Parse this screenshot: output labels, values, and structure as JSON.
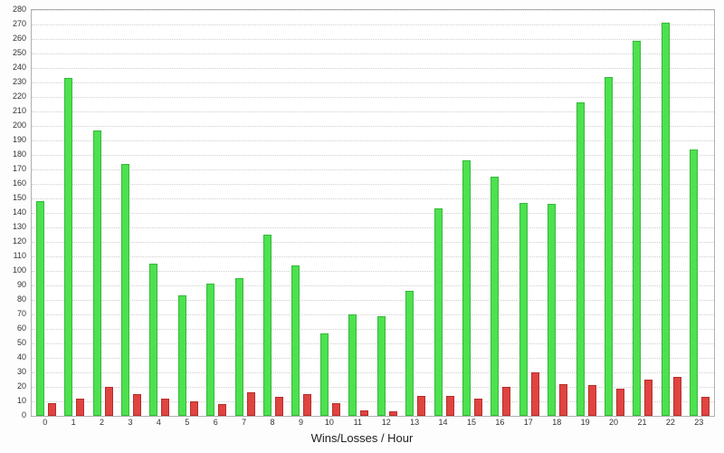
{
  "chart_data": {
    "type": "bar",
    "title": "Wins/Losses / Hour",
    "xlabel": "Wins/Losses / Hour",
    "ylabel": "",
    "ylim": [
      0,
      280
    ],
    "y_tick_step": 10,
    "grid": "horizontal-dotted",
    "legend": "none",
    "categories": [
      "0",
      "1",
      "2",
      "3",
      "4",
      "5",
      "6",
      "7",
      "8",
      "9",
      "10",
      "11",
      "12",
      "13",
      "14",
      "15",
      "16",
      "17",
      "18",
      "19",
      "20",
      "21",
      "22",
      "23"
    ],
    "series": [
      {
        "name": "Wins",
        "color": "#4de14f",
        "border_color": "#35b93a",
        "values": [
          148,
          233,
          197,
          174,
          105,
          83,
          91,
          95,
          125,
          104,
          57,
          70,
          69,
          86,
          143,
          176,
          165,
          147,
          146,
          216,
          234,
          259,
          271,
          184
        ]
      },
      {
        "name": "Losses",
        "color": "#e04441",
        "border_color": "#b52f2c",
        "values": [
          9,
          12,
          20,
          15,
          12,
          10,
          8,
          16,
          13,
          15,
          9,
          4,
          3,
          14,
          14,
          12,
          20,
          30,
          22,
          21,
          19,
          25,
          27,
          13
        ]
      }
    ]
  },
  "colors": {
    "plot_background": "#ffffff",
    "page_background": "#fdfdfd",
    "gridline": "#cfcfcf",
    "plot_border": "#b0b0b0",
    "tick_label": "#333333",
    "title": "#222222"
  }
}
